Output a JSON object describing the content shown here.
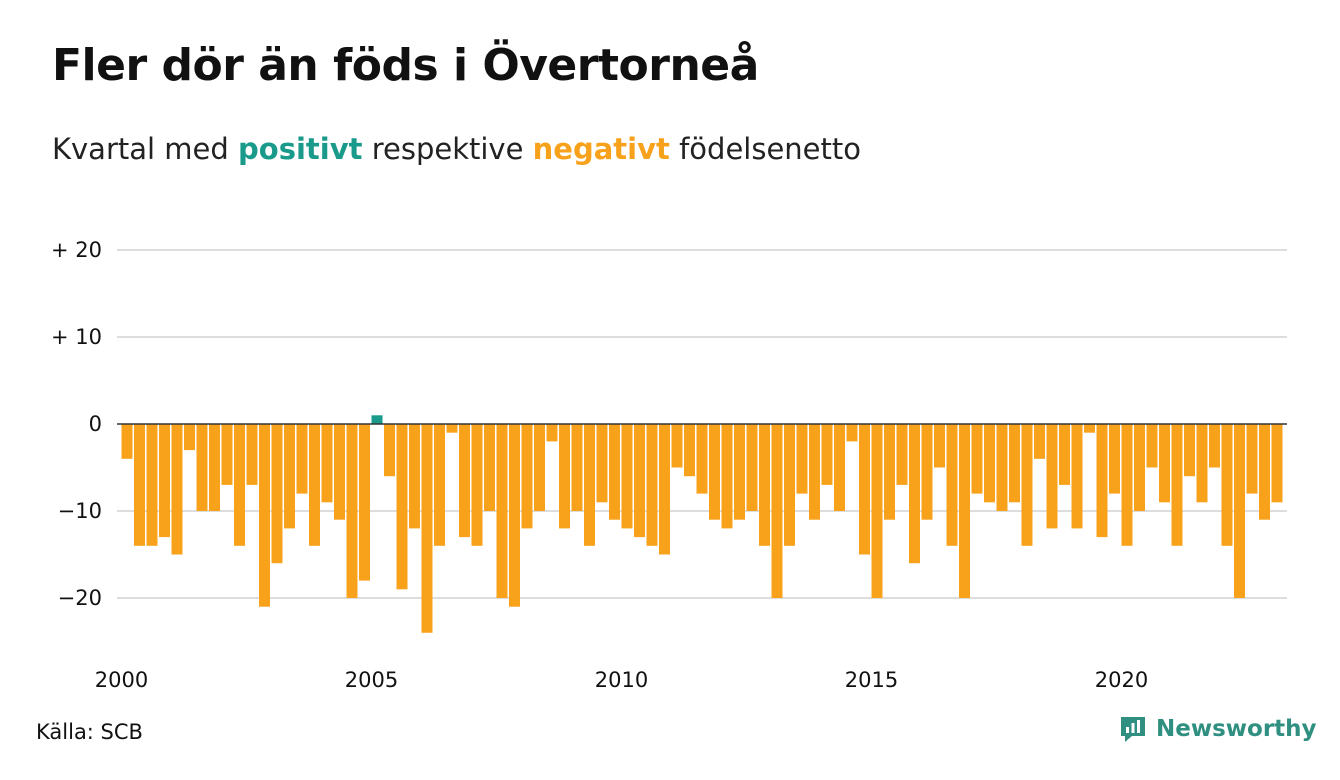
{
  "header": {
    "title": "Fler dör än föds i Övertorneå",
    "subtitle_pre": "Kvartal med ",
    "subtitle_pos": "positivt",
    "subtitle_mid": " respektive ",
    "subtitle_neg": "negativt",
    "subtitle_post": " födelsenetto"
  },
  "footer": {
    "source": "Källa: SCB",
    "brand": "Newsworthy"
  },
  "colors": {
    "positive": "#1a9a8a",
    "negative": "#f8a21c",
    "grid": "#dddddd",
    "zero_line": "#333333",
    "brand": "#2f8f80"
  },
  "chart_data": {
    "type": "bar",
    "x_start": "2000-Q1",
    "x_ticks": [
      "2000",
      "2005",
      "2010",
      "2015",
      "2020"
    ],
    "y_ticks": [
      {
        "value": 20,
        "label": "+ 20"
      },
      {
        "value": 10,
        "label": "+ 10"
      },
      {
        "value": 0,
        "label": "0"
      },
      {
        "value": -10,
        "label": "−10"
      },
      {
        "value": -20,
        "label": "−20"
      }
    ],
    "ylim": [
      -26,
      22
    ],
    "grid": true,
    "values": [
      -4,
      -14,
      -14,
      -13,
      -15,
      -3,
      -10,
      -10,
      -7,
      -14,
      -7,
      -21,
      -16,
      -12,
      -8,
      -14,
      -9,
      -11,
      -20,
      -18,
      1,
      -6,
      -19,
      -12,
      -24,
      -14,
      -1,
      -13,
      -14,
      -10,
      -20,
      -21,
      -12,
      -10,
      -2,
      -12,
      -10,
      -14,
      -9,
      -11,
      -12,
      -13,
      -14,
      -15,
      -5,
      -6,
      -8,
      -11,
      -12,
      -11,
      -10,
      -14,
      -20,
      -14,
      -8,
      -11,
      -7,
      -10,
      -2,
      -15,
      -20,
      -11,
      -7,
      -16,
      -11,
      -5,
      -14,
      -20,
      -8,
      -9,
      -10,
      -9,
      -14,
      -4,
      -12,
      -7,
      -12,
      -1,
      -13,
      -8,
      -14,
      -10,
      -5,
      -9,
      -14,
      -6,
      -9,
      -5,
      -14,
      -20,
      -8,
      -11,
      -9
    ]
  }
}
